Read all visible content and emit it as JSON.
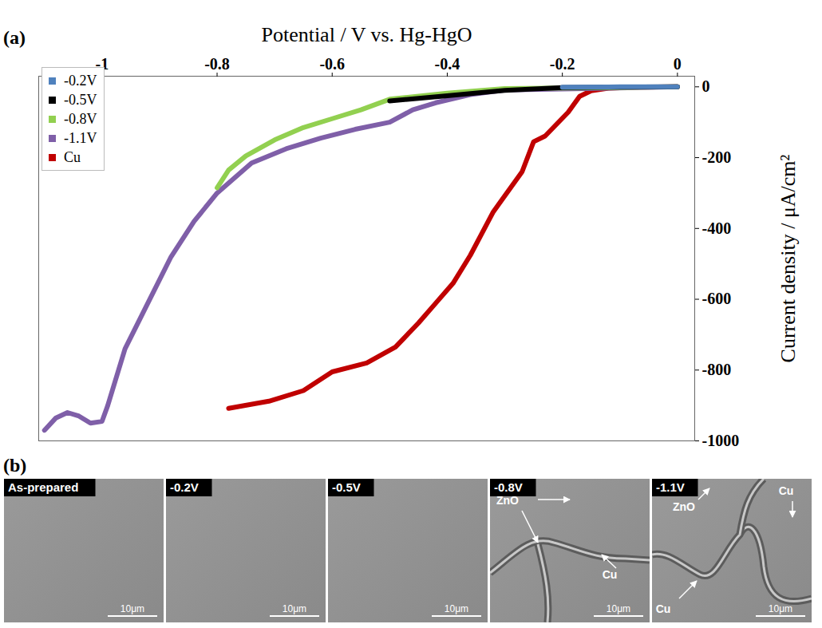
{
  "chart_data": {
    "type": "line",
    "panel": "(a)",
    "xlabel": "Potential / V vs. Hg-HgO",
    "ylabel": "Current density / μA/cm²",
    "xlim": [
      -1.11,
      0.03
    ],
    "xticks": [
      -1,
      -0.8,
      -0.6,
      -0.4,
      -0.2,
      0
    ],
    "ylim": [
      -1000,
      30
    ],
    "yticks": [
      0,
      -200,
      -400,
      -600,
      -800,
      -1000
    ],
    "legend": "top-left",
    "series": [
      {
        "name": "-0.2V",
        "color": "#4f81bd",
        "x": [
          0,
          -0.1,
          -0.2
        ],
        "values": [
          0,
          0,
          -1
        ]
      },
      {
        "name": "-0.5V",
        "color": "#000000",
        "x": [
          0,
          -0.2,
          -0.3,
          -0.4,
          -0.5
        ],
        "values": [
          0,
          -2,
          -10,
          -25,
          -40
        ]
      },
      {
        "name": "-0.8V",
        "color": "#92d050",
        "x": [
          0,
          -0.3,
          -0.4,
          -0.5,
          -0.55,
          -0.6,
          -0.65,
          -0.7,
          -0.75,
          -0.78,
          -0.8
        ],
        "values": [
          0,
          -5,
          -18,
          -35,
          -65,
          -90,
          -115,
          -150,
          -195,
          -235,
          -285
        ]
      },
      {
        "name": "-1.1V",
        "color": "#7f5fa8",
        "x": [
          0,
          -0.3,
          -0.36,
          -0.42,
          -0.46,
          -0.5,
          -0.56,
          -0.62,
          -0.68,
          -0.74,
          -0.8,
          -0.84,
          -0.88,
          -0.92,
          -0.96,
          -0.99,
          -1.0,
          -1.02,
          -1.04,
          -1.06,
          -1.08,
          -1.1
        ],
        "values": [
          0,
          -9,
          -22,
          -45,
          -65,
          -100,
          -120,
          -145,
          -175,
          -215,
          -300,
          -380,
          -480,
          -610,
          -740,
          -900,
          -945,
          -950,
          -930,
          -920,
          -935,
          -970
        ]
      },
      {
        "name": "Cu",
        "color": "#c00000",
        "x": [
          0,
          -0.07,
          -0.12,
          -0.15,
          -0.17,
          -0.19,
          -0.23,
          -0.25,
          -0.27,
          -0.32,
          -0.36,
          -0.39,
          -0.42,
          -0.45,
          -0.49,
          -0.54,
          -0.6,
          -0.65,
          -0.71,
          -0.78
        ],
        "values": [
          0,
          -1,
          -4,
          -11,
          -27,
          -72,
          -139,
          -155,
          -240,
          -353,
          -476,
          -555,
          -611,
          -667,
          -735,
          -780,
          -805,
          -858,
          -888,
          -908
        ]
      }
    ]
  },
  "micrographs": {
    "panel": "(b)",
    "images": [
      {
        "label": "As-prepared",
        "scale_bar": "10μm",
        "annotations": []
      },
      {
        "label": "-0.2V",
        "scale_bar": "10μm",
        "annotations": []
      },
      {
        "label": "-0.5V",
        "scale_bar": "10μm",
        "annotations": []
      },
      {
        "label": "-0.8V",
        "scale_bar": "10μm",
        "annotations": [
          "ZnO",
          "Cu"
        ]
      },
      {
        "label": "-1.1V",
        "scale_bar": "10μm",
        "annotations": [
          "ZnO",
          "Cu",
          "Cu"
        ]
      }
    ]
  }
}
